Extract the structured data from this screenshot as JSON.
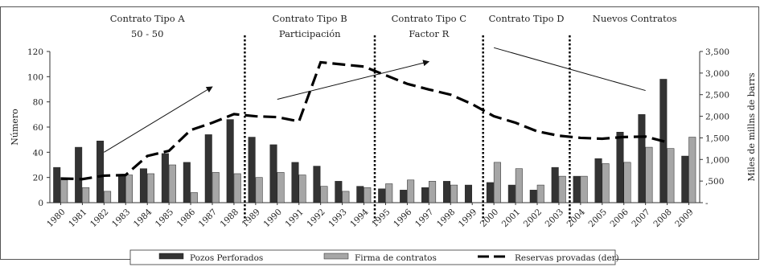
{
  "chart_data": {
    "type": "bar",
    "periods": [
      {
        "lines": [
          "Contrato Tipo A",
          "50 - 50"
        ]
      },
      {
        "lines": [
          "Contrato Tipo B",
          "Participación"
        ]
      },
      {
        "lines": [
          "Contrato Tipo C",
          "Factor R"
        ]
      },
      {
        "lines": [
          "Contrato Tipo D"
        ]
      },
      {
        "lines": [
          "Nuevos Contratos"
        ]
      }
    ],
    "ylabel": "Número",
    "y2label": "Miles de millns de barrs",
    "ylim": [
      0,
      120
    ],
    "yticks": [
      "0",
      "20",
      "40",
      "60",
      "80",
      "100",
      "120"
    ],
    "y2lim": [
      0,
      3500
    ],
    "y2ticks": [
      "-",
      ",500",
      "1,000",
      "1,500",
      "2,000",
      "2,500",
      "3,000",
      "3,500"
    ],
    "categories": [
      "1980",
      "1981",
      "1982",
      "1983",
      "1984",
      "1985",
      "1986",
      "1987",
      "1988",
      "1989",
      "1990",
      "1991",
      "1992",
      "1993",
      "1994",
      "1995",
      "1996",
      "1997",
      "1998",
      "1999",
      "2000",
      "2001",
      "2002",
      "2003",
      "2004",
      "2005",
      "2006",
      "2007",
      "2008",
      "2009"
    ],
    "series": [
      {
        "name": "Pozos Perforados",
        "color": "#333333",
        "values": [
          28,
          44,
          49,
          22,
          27,
          39,
          32,
          54,
          66,
          52,
          46,
          32,
          29,
          17,
          13,
          11,
          10,
          12,
          17,
          14,
          16,
          14,
          10,
          28,
          21,
          35,
          56,
          70,
          98,
          37
        ]
      },
      {
        "name": "Firma de contratos",
        "color": "#a6a6a6",
        "values": [
          18,
          12,
          9,
          22,
          23,
          30,
          8,
          24,
          23,
          20,
          24,
          22,
          13,
          9,
          12,
          15,
          18,
          17,
          14,
          0,
          32,
          27,
          14,
          21,
          21,
          31,
          32,
          44,
          43,
          52
        ]
      },
      {
        "name": "Reservas provadas (der)",
        "color": "#000000",
        "axis": "right",
        "values": [
          560,
          545,
          625,
          640,
          1080,
          1200,
          1680,
          1850,
          2050,
          2000,
          1980,
          1880,
          3250,
          3200,
          3150,
          2950,
          2750,
          2620,
          2500,
          2280,
          2000,
          1850,
          1650,
          1550,
          1500,
          1480,
          1520,
          1530,
          1400,
          null
        ]
      }
    ],
    "period_boundaries_after": [
      "1988",
      "1994",
      "1999",
      "2003"
    ],
    "trend_arrows": [
      {
        "from": [
          "1982",
          40
        ],
        "to": [
          "1987",
          92
        ],
        "arrow": true
      },
      {
        "from": [
          "1990",
          82
        ],
        "to": [
          "1997",
          112
        ],
        "arrow": true
      },
      {
        "from": [
          "2000",
          123
        ],
        "to": [
          "2007",
          89
        ],
        "arrow": false
      }
    ],
    "grid": false,
    "legend_position": "bottom"
  }
}
